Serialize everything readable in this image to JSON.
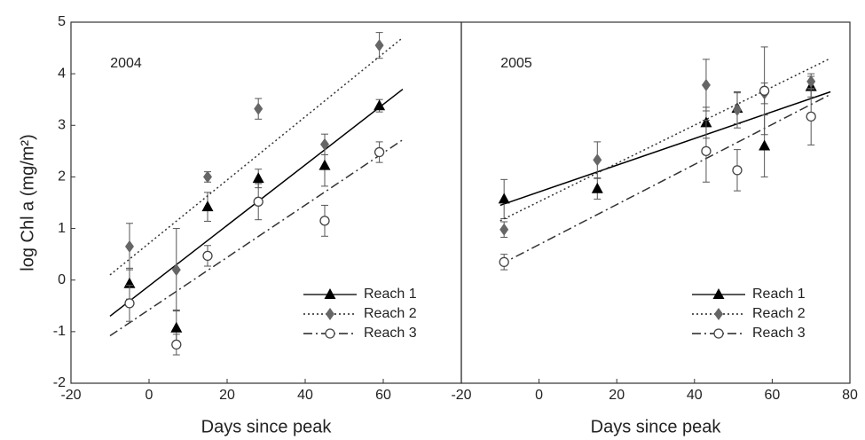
{
  "chart_data": [
    {
      "type": "scatter",
      "annotation": "2004",
      "xlabel": "Days since peak",
      "ylabel": "log Chl a (mg/m²)",
      "xlim": [
        -20,
        80
      ],
      "xticks": [
        -20,
        0,
        20,
        40,
        60
      ],
      "ylim": [
        -2,
        5
      ],
      "yticks": [
        -2,
        -1,
        0,
        1,
        2,
        3,
        4,
        5
      ],
      "legend": "lower right",
      "series": [
        {
          "name": "Reach 1",
          "color": "#000000",
          "marker": "triangle",
          "line_style": "solid",
          "x": [
            -5,
            7,
            15,
            28,
            45,
            59
          ],
          "values": [
            -0.07,
            -0.93,
            1.42,
            1.97,
            2.22,
            3.38
          ],
          "errors": [
            0.3,
            0.35,
            0.28,
            0.18,
            0.4,
            0.12
          ],
          "fit": {
            "x": [
              -10,
              65
            ],
            "values": [
              -0.7,
              3.7
            ]
          }
        },
        {
          "name": "Reach 2",
          "color": "#666666",
          "marker": "diamond",
          "line_style": "dotted",
          "x": [
            -5,
            7,
            15,
            28,
            45,
            59
          ],
          "values": [
            0.65,
            0.2,
            2.0,
            3.32,
            2.63,
            4.55
          ],
          "errors": [
            0.45,
            0.8,
            0.1,
            0.2,
            0.2,
            0.25
          ],
          "fit": {
            "x": [
              -10,
              65
            ],
            "values": [
              0.1,
              4.7
            ]
          }
        },
        {
          "name": "Reach 3",
          "color": "#444444",
          "marker": "circle",
          "line_style": "dashdot",
          "x": [
            -5,
            7,
            15,
            28,
            45,
            59
          ],
          "values": [
            -0.45,
            -1.25,
            0.47,
            1.52,
            1.15,
            2.48
          ],
          "errors": [
            0.35,
            0.2,
            0.2,
            0.35,
            0.3,
            0.2
          ],
          "fit": {
            "x": [
              -10,
              65
            ],
            "values": [
              -1.08,
              2.72
            ]
          }
        }
      ]
    },
    {
      "type": "scatter",
      "annotation": "2005",
      "xlabel": "Days since peak",
      "xlim": [
        -20,
        80
      ],
      "xticks": [
        -20,
        0,
        20,
        40,
        60,
        80
      ],
      "ylim": [
        -2,
        5
      ],
      "legend": "lower right",
      "series": [
        {
          "name": "Reach 1",
          "color": "#000000",
          "marker": "triangle",
          "line_style": "solid",
          "x": [
            -9,
            15,
            43,
            51,
            58,
            70
          ],
          "values": [
            1.57,
            1.77,
            3.05,
            3.33,
            2.6,
            3.75
          ],
          "errors": [
            0.38,
            0.2,
            0.3,
            0.3,
            0.6,
            0.2
          ],
          "fit": {
            "x": [
              -10,
              75
            ],
            "values": [
              1.45,
              3.65
            ]
          }
        },
        {
          "name": "Reach 2",
          "color": "#666666",
          "marker": "diamond",
          "line_style": "dotted",
          "x": [
            -9,
            15,
            43,
            51,
            58,
            70
          ],
          "values": [
            0.98,
            2.33,
            3.78,
            3.3,
            3.62,
            3.85
          ],
          "errors": [
            0.15,
            0.35,
            0.5,
            0.35,
            0.2,
            0.15
          ],
          "fit": {
            "x": [
              -10,
              75
            ],
            "values": [
              1.15,
              4.3
            ]
          }
        },
        {
          "name": "Reach 3",
          "color": "#444444",
          "marker": "circle",
          "line_style": "dashdot",
          "x": [
            -9,
            43,
            51,
            58,
            70
          ],
          "values": [
            0.35,
            2.5,
            2.13,
            3.67,
            3.17
          ],
          "errors": [
            0.15,
            0.6,
            0.4,
            0.85,
            0.55
          ],
          "fit": {
            "x": [
              -10,
              75
            ],
            "values": [
              0.3,
              3.6
            ]
          }
        }
      ]
    }
  ]
}
